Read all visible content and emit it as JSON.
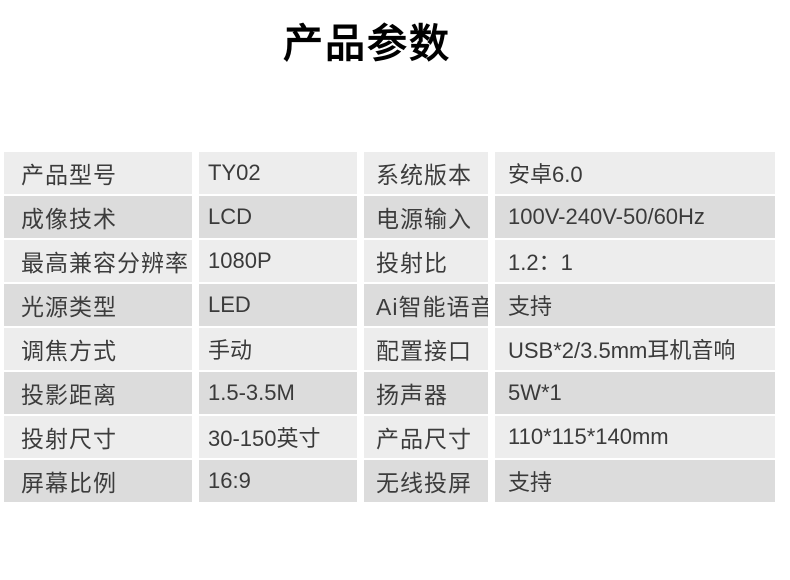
{
  "title": "产品参数",
  "colors": {
    "background": "#ffffff",
    "row_light": "#ededed",
    "row_dark": "#dcdcdc",
    "label_text": "#3c3c3c",
    "value_text": "#3a3a3a",
    "title_text": "#000000"
  },
  "table": {
    "rows": [
      {
        "label_left": "产品型号",
        "value_left": "TY02",
        "label_right": "系统版本",
        "value_right": "安卓6.0"
      },
      {
        "label_left": "成像技术",
        "value_left": "LCD",
        "label_right": "电源输入",
        "value_right": "100V-240V-50/60Hz"
      },
      {
        "label_left": "最高兼容分辨率",
        "value_left": "1080P",
        "label_right": "投射比",
        "value_right": "1.2：1"
      },
      {
        "label_left": "光源类型",
        "value_left": "LED",
        "label_right": "Ai智能语音",
        "value_right": "支持"
      },
      {
        "label_left": "调焦方式",
        "value_left": "手动",
        "label_right": "配置接口",
        "value_right": "USB*2/3.5mm耳机音响"
      },
      {
        "label_left": "投影距离",
        "value_left": "1.5-3.5M",
        "label_right": "扬声器",
        "value_right": "5W*1"
      },
      {
        "label_left": "投射尺寸",
        "value_left": "30-150英寸",
        "label_right": "产品尺寸",
        "value_right": "110*115*140mm"
      },
      {
        "label_left": "屏幕比例",
        "value_left": "16:9",
        "label_right": "无线投屏",
        "value_right": "支持"
      }
    ]
  }
}
